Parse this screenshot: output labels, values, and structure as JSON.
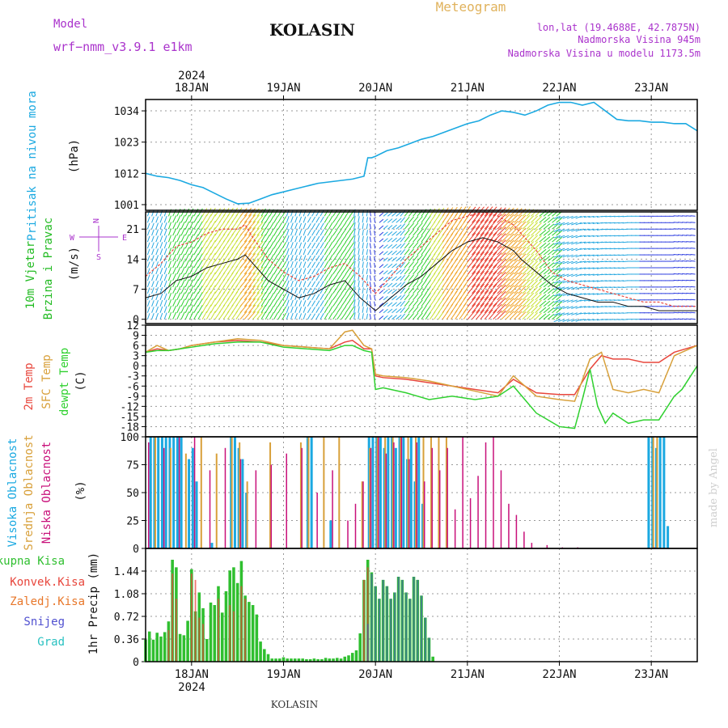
{
  "header": {
    "model_label": "Model",
    "model_name": "wrf−nmm_v3.9.1  e1km",
    "station": "KOLASIN",
    "product": "Meteogram",
    "coords": "lon,lat (19.4688E, 42.7875N)",
    "elevation": "Nadmorska Visina 945m",
    "model_elevation": "Nadmorska Visina u modelu 1173.5m",
    "year_top": "2024",
    "year_bottom": "2024",
    "footer_station": "KOLASIN",
    "credit": "made by Angel"
  },
  "colors": {
    "pressure": "#1ba9e1",
    "temp2m": "#e8463c",
    "sfc": "#d8a03a",
    "dewpt": "#2fd12f",
    "high_cloud": "#1ba9e1",
    "mid_cloud": "#d8a03a",
    "low_cloud": "#c8107a",
    "total_precip": "#2fbf2f",
    "conv_precip": "#e8463c",
    "frozen": "#e8772a",
    "snow": "#5050d0",
    "graupel": "#29c1c1",
    "wind_label": "#22bb22",
    "direction": "#aa33cc"
  },
  "chart_data": [
    {
      "type": "line",
      "panel": "pressure",
      "ylabel": [
        "Pritisak na nivou mora",
        "(hPa)"
      ],
      "x_ticks": [
        "18JAN",
        "19JAN",
        "20JAN",
        "21JAN",
        "22JAN",
        "23JAN"
      ],
      "x_hours": [
        0,
        24,
        48,
        72,
        96,
        120
      ],
      "xlim_hours": [
        -12,
        132
      ],
      "ylim": [
        999,
        1038
      ],
      "y_ticks": [
        1001,
        1012,
        1023,
        1034
      ],
      "grid": true,
      "series": [
        {
          "key": "pressure",
          "x": [
            -12,
            -9,
            -6,
            -3,
            0,
            3,
            6,
            9,
            12,
            15,
            18,
            21,
            24,
            27,
            30,
            33,
            36,
            39,
            42,
            45,
            46,
            47,
            48,
            51,
            54,
            57,
            60,
            63,
            66,
            69,
            72,
            75,
            78,
            81,
            84,
            87,
            90,
            93,
            96,
            99,
            102,
            105,
            108,
            111,
            114,
            117,
            120,
            123,
            126,
            129,
            132
          ],
          "values": [
            1012,
            1011,
            1010.5,
            1009.5,
            1008,
            1007,
            1005,
            1003,
            1001.3,
            1001.5,
            1003,
            1004.5,
            1005.5,
            1006.5,
            1007.5,
            1008.5,
            1009,
            1009.5,
            1010,
            1011,
            1017.5,
            1017.5,
            1018,
            1020,
            1021,
            1022.5,
            1024,
            1025,
            1026.5,
            1028,
            1029.5,
            1030.5,
            1032.5,
            1034,
            1033.5,
            1032.5,
            1034,
            1036,
            1037,
            1037,
            1036,
            1037,
            1034,
            1031,
            1030.5,
            1030.5,
            1030,
            1030,
            1029.5,
            1029.5,
            1027
          ]
        }
      ]
    },
    {
      "type": "line",
      "panel": "wind",
      "ylabel": [
        "10m Vjetar",
        "Brzina i Pravac",
        "(m/s)"
      ],
      "compass": [
        "N",
        "E",
        "S",
        "W"
      ],
      "ylim": [
        -1,
        25
      ],
      "y_ticks": [
        0,
        7,
        14,
        21
      ],
      "grid": true,
      "series": [
        {
          "key": "wind_speed",
          "x": [
            -12,
            -8,
            -4,
            0,
            4,
            8,
            12,
            14,
            16,
            20,
            24,
            28,
            32,
            36,
            40,
            44,
            48,
            52,
            56,
            60,
            64,
            68,
            72,
            76,
            80,
            84,
            86,
            90,
            94,
            98,
            102,
            106,
            110,
            114,
            118,
            122,
            126,
            132
          ],
          "values": [
            5,
            6,
            9,
            10,
            12,
            13,
            14,
            15,
            13,
            9,
            7,
            5,
            6,
            8,
            9,
            5,
            2,
            5,
            8,
            10,
            13,
            16,
            18,
            19,
            18,
            16,
            14,
            11,
            8,
            6,
            5,
            4,
            4,
            3,
            3,
            2,
            2,
            2
          ]
        },
        {
          "key": "wind_gust",
          "x": [
            -12,
            -8,
            -4,
            0,
            4,
            8,
            12,
            14,
            16,
            20,
            24,
            28,
            32,
            36,
            40,
            44,
            48,
            52,
            56,
            60,
            64,
            68,
            72,
            76,
            80,
            84,
            86,
            90,
            94,
            98,
            102,
            106,
            110,
            114,
            118,
            122,
            126,
            132
          ],
          "values": [
            10,
            13,
            17,
            18,
            20,
            21,
            21,
            22,
            19,
            14,
            11,
            9,
            10,
            12,
            13,
            10,
            6,
            10,
            14,
            17,
            20,
            23,
            24,
            25,
            24,
            22,
            20,
            16,
            11,
            9,
            8,
            7,
            6,
            5,
            4,
            4,
            3,
            3
          ]
        }
      ],
      "direction_samples_x": [
        -12,
        -6,
        0,
        6,
        12,
        18,
        24,
        30,
        36,
        42,
        46,
        48,
        54,
        60,
        66,
        72,
        78,
        84,
        90,
        96,
        102,
        108,
        114,
        120,
        126,
        132
      ],
      "direction_samples_deg": [
        200,
        205,
        210,
        215,
        220,
        210,
        200,
        210,
        215,
        190,
        170,
        230,
        220,
        215,
        215,
        220,
        225,
        225,
        230,
        70,
        80,
        85,
        90,
        90,
        95,
        95
      ]
    },
    {
      "type": "line",
      "panel": "temperature",
      "ylabel": [
        "2m Temp",
        "SFC Temp",
        "dewpt Temp",
        "(C)"
      ],
      "ylim": [
        -21,
        12
      ],
      "y_ticks": [
        12,
        9,
        6,
        3,
        0,
        -3,
        -6,
        -9,
        -12,
        -15,
        -18
      ],
      "grid": true,
      "series": [
        {
          "key": "temp2m",
          "x": [
            -12,
            -9,
            -6,
            -3,
            0,
            6,
            12,
            18,
            24,
            30,
            36,
            40,
            42,
            45,
            47,
            48,
            50,
            56,
            62,
            68,
            74,
            80,
            84,
            90,
            96,
            100,
            104,
            107,
            110,
            114,
            118,
            122,
            126,
            132
          ],
          "values": [
            4,
            5,
            4.5,
            5,
            6,
            7,
            7.5,
            7,
            6,
            5.5,
            5,
            7,
            7.5,
            5,
            5,
            -3,
            -3.5,
            -4,
            -5,
            -6,
            -7,
            -8,
            -4,
            -8,
            -8.5,
            -8.5,
            -1,
            3,
            2,
            2,
            1,
            1,
            4,
            6
          ]
        },
        {
          "key": "sfc_temp",
          "x": [
            -12,
            -9,
            -6,
            -3,
            0,
            6,
            12,
            18,
            24,
            30,
            36,
            40,
            42,
            45,
            47,
            48,
            50,
            56,
            62,
            68,
            74,
            80,
            84,
            90,
            96,
            100,
            104,
            107,
            110,
            114,
            118,
            122,
            126,
            132
          ],
          "values": [
            4,
            6,
            4.5,
            5,
            6,
            7,
            8,
            7.5,
            6,
            5.5,
            5,
            10,
            10.5,
            6,
            5,
            -2.5,
            -3,
            -3.5,
            -4.5,
            -6,
            -7.5,
            -9,
            -3,
            -9,
            -10,
            -10.5,
            2,
            4,
            -7,
            -8,
            -7,
            -8,
            3,
            6
          ]
        },
        {
          "key": "dewpt",
          "x": [
            -12,
            -9,
            -6,
            -3,
            0,
            6,
            12,
            18,
            24,
            30,
            36,
            40,
            42,
            45,
            47,
            48,
            50,
            56,
            62,
            68,
            74,
            80,
            84,
            90,
            96,
            100,
            102,
            104,
            106,
            108,
            110,
            114,
            118,
            122,
            126,
            128,
            132
          ],
          "values": [
            4,
            4.5,
            4.5,
            5,
            5.5,
            6.5,
            7,
            7,
            5.5,
            5,
            4.5,
            6,
            6,
            4.5,
            4,
            -7,
            -6.5,
            -8,
            -10,
            -9,
            -10,
            -9,
            -6,
            -14,
            -18,
            -18.5,
            -10,
            -1,
            -12,
            -17,
            -14,
            -17,
            -16,
            -16,
            -9,
            -7,
            0
          ]
        }
      ]
    },
    {
      "type": "bar",
      "panel": "cloud",
      "ylabel": [
        "Visoka Oblacnost",
        "Srednja Oblacnost",
        "Niska Oblacnost",
        "(%)"
      ],
      "ylim": [
        0,
        100
      ],
      "y_ticks": [
        0,
        25,
        50,
        75,
        100
      ],
      "grid": true,
      "series": [
        {
          "key": "high_cloud",
          "x": [
            -11,
            -10,
            -9,
            -8,
            -7,
            -6,
            -5,
            -4,
            -3,
            -1,
            0,
            1,
            5,
            10,
            11,
            12,
            13,
            14,
            30,
            31,
            36,
            46,
            47,
            48,
            49,
            50,
            51,
            52,
            53,
            54,
            55,
            56,
            57,
            58,
            59,
            60,
            119,
            120,
            121,
            122,
            123,
            124
          ],
          "values": [
            100,
            100,
            100,
            100,
            100,
            100,
            100,
            100,
            100,
            80,
            90,
            60,
            5,
            100,
            100,
            90,
            80,
            50,
            100,
            100,
            25,
            100,
            100,
            100,
            100,
            90,
            100,
            100,
            90,
            100,
            100,
            80,
            100,
            60,
            100,
            40,
            100,
            100,
            90,
            100,
            100,
            20
          ]
        },
        {
          "key": "mid_cloud",
          "x": [
            -10,
            -6,
            -2,
            2,
            6,
            10,
            12,
            14,
            20,
            28,
            30,
            34,
            38,
            44,
            46,
            48,
            50,
            52,
            54,
            56,
            58,
            60,
            62,
            64,
            66,
            120,
            121
          ],
          "values": [
            100,
            90,
            85,
            100,
            85,
            100,
            95,
            60,
            95,
            95,
            100,
            100,
            100,
            60,
            90,
            100,
            100,
            100,
            100,
            100,
            100,
            100,
            100,
            100,
            100,
            100,
            100
          ]
        },
        {
          "key": "low_cloud",
          "x": [
            -12,
            -8,
            -4,
            0,
            4,
            8,
            12,
            16,
            20,
            24,
            28,
            32,
            36,
            40,
            42,
            44,
            46,
            48,
            50,
            52,
            54,
            56,
            58,
            60,
            62,
            64,
            66,
            68,
            70,
            72,
            74,
            76,
            78,
            80,
            82,
            84,
            86,
            88,
            92,
            96,
            100,
            120
          ],
          "values": [
            95,
            90,
            100,
            100,
            70,
            90,
            80,
            70,
            75,
            85,
            90,
            50,
            70,
            25,
            40,
            60,
            90,
            100,
            85,
            95,
            100,
            80,
            95,
            60,
            90,
            70,
            90,
            35,
            100,
            45,
            65,
            95,
            100,
            70,
            40,
            30,
            15,
            5,
            3,
            1,
            1,
            1
          ]
        }
      ]
    },
    {
      "type": "bar",
      "panel": "precip",
      "ylabel": [
        "1hr Precip (mm)"
      ],
      "legend": [
        "Ukupna Kisa",
        "Konvek.Kisa",
        "Zaledj.Kisa",
        "Snijeg",
        "Grad"
      ],
      "ylim": [
        0,
        1.8
      ],
      "y_ticks": [
        0,
        0.36,
        0.72,
        1.08,
        1.44
      ],
      "grid": true,
      "series": [
        {
          "key": "total_precip",
          "x": [
            -12,
            -11,
            -10,
            -9,
            -8,
            -7,
            -6,
            -5,
            -4,
            -3,
            -2,
            -1,
            0,
            1,
            2,
            3,
            4,
            5,
            6,
            7,
            8,
            9,
            10,
            11,
            12,
            13,
            14,
            15,
            16,
            17,
            18,
            19,
            20,
            21,
            22,
            23,
            24,
            25,
            26,
            27,
            28,
            29,
            30,
            31,
            32,
            33,
            34,
            35,
            36,
            37,
            38,
            39,
            40,
            41,
            42,
            43,
            44,
            45,
            46,
            47,
            48,
            49,
            50,
            51,
            52,
            53,
            54,
            55,
            56,
            57,
            58,
            59,
            60,
            61,
            62,
            63,
            64
          ],
          "values": [
            0.35,
            0.48,
            0.35,
            0.46,
            0.4,
            0.47,
            0.64,
            1.62,
            1.5,
            0.44,
            0.42,
            0.65,
            1.47,
            0.8,
            1.1,
            0.85,
            0.36,
            0.94,
            0.9,
            1.2,
            0.78,
            1.12,
            1.45,
            1.5,
            1.25,
            1.6,
            1.05,
            0.95,
            0.9,
            0.75,
            0.32,
            0.2,
            0.12,
            0.05,
            0.05,
            0.05,
            0.07,
            0.05,
            0.05,
            0.05,
            0.05,
            0.05,
            0.04,
            0.04,
            0.05,
            0.04,
            0.04,
            0.06,
            0.05,
            0.05,
            0.06,
            0.05,
            0.08,
            0.1,
            0.14,
            0.18,
            0.45,
            1.3,
            1.62,
            1.42,
            1.2,
            1.0,
            1.3,
            1.2,
            1.0,
            1.1,
            1.35,
            1.3,
            1.1,
            1.0,
            1.35,
            1.3,
            1.05,
            0.7,
            0.38,
            0.08,
            0
          ]
        },
        {
          "key": "conv_precip",
          "x": [
            -6,
            -5,
            -4,
            0,
            1,
            2,
            3,
            7,
            10,
            11,
            13,
            14,
            45,
            46
          ],
          "values": [
            0.5,
            1.4,
            1.0,
            1.4,
            1.3,
            0.7,
            0.6,
            1.0,
            0.9,
            0.8,
            1.2,
            1.0,
            1.3,
            1.5
          ]
        },
        {
          "key": "snow",
          "x": [
            46,
            47,
            48,
            49,
            50,
            51,
            52,
            53,
            54,
            55,
            56,
            57,
            58,
            59,
            60,
            61,
            62
          ],
          "values": [
            0.6,
            1.4,
            1.2,
            1.0,
            1.3,
            1.2,
            1.0,
            1.1,
            1.35,
            1.3,
            1.1,
            1.0,
            1.35,
            1.3,
            1.05,
            0.7,
            0.38
          ]
        }
      ]
    }
  ]
}
